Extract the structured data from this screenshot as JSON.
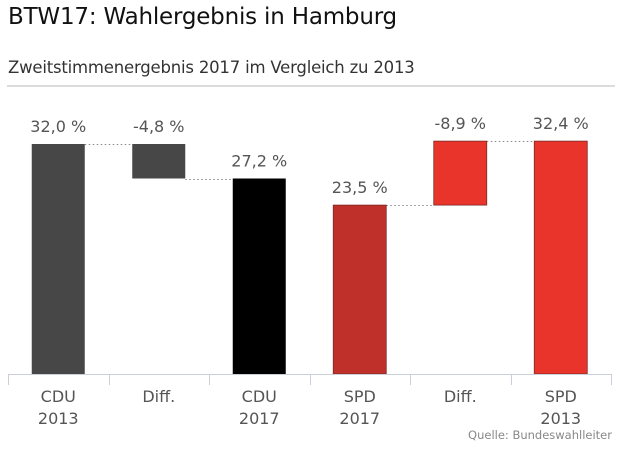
{
  "header": {
    "title": "BTW17: Wahlergebnis in Hamburg",
    "subtitle": "Zweitstimmenergebnis 2017 im Vergleich zu 2013"
  },
  "source": "Quelle: Bundeswahlleiter",
  "chart_data": {
    "type": "bar",
    "subtype": "waterfall",
    "title": "BTW17: Wahlergebnis in Hamburg",
    "subtitle": "Zweitstimmenergebnis 2017 im Vergleich zu 2013",
    "xlabel": "",
    "ylabel": "",
    "ylim": [
      0,
      32.4
    ],
    "grid": false,
    "legend": "none",
    "unit": "%",
    "categories": [
      [
        "CDU",
        "2013"
      ],
      [
        "Diff."
      ],
      [
        "CDU",
        "2017"
      ],
      [
        "SPD",
        "2017"
      ],
      [
        "Diff."
      ],
      [
        "SPD",
        "2013"
      ]
    ],
    "bars": [
      {
        "category": "CDU 2013",
        "kind": "total",
        "from": 0,
        "to": 32.0,
        "label": "32,0 %",
        "color": "#474747"
      },
      {
        "category": "Diff.",
        "kind": "delta",
        "from": 27.2,
        "to": 32.0,
        "value": -4.8,
        "label": "-4,8 %",
        "color": "#474747"
      },
      {
        "category": "CDU 2017",
        "kind": "total",
        "from": 0,
        "to": 27.2,
        "label": "27,2 %",
        "color": "#000000"
      },
      {
        "category": "SPD 2017",
        "kind": "total",
        "from": 0,
        "to": 23.5,
        "label": "23,5 %",
        "color": "#c0302a"
      },
      {
        "category": "Diff.",
        "kind": "delta",
        "from": 23.5,
        "to": 32.4,
        "value": -8.9,
        "label": "-8,9 %",
        "color": "#e8342a"
      },
      {
        "category": "SPD 2013",
        "kind": "total",
        "from": 0,
        "to": 32.4,
        "label": "32,4 %",
        "color": "#e8342a"
      }
    ],
    "connectors": [
      {
        "from_bar": 0,
        "to_bar": 1,
        "level": 32.0
      },
      {
        "from_bar": 1,
        "to_bar": 2,
        "level": 27.2
      },
      {
        "from_bar": 3,
        "to_bar": 4,
        "level": 23.5
      },
      {
        "from_bar": 4,
        "to_bar": 5,
        "level": 32.4
      }
    ]
  }
}
